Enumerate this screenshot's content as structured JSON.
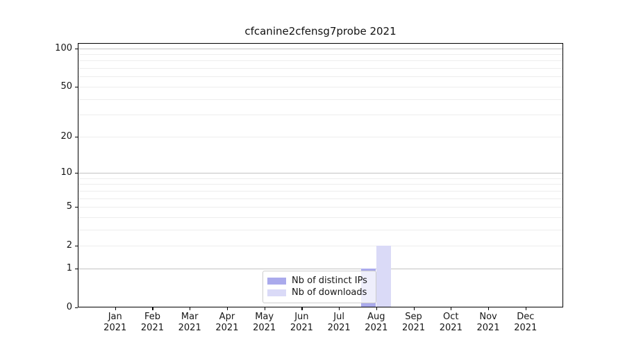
{
  "chart_data": {
    "type": "bar",
    "title": "cfcanine2cfensg7probe 2021",
    "categories": [
      {
        "month": "Jan",
        "year": "2021"
      },
      {
        "month": "Feb",
        "year": "2021"
      },
      {
        "month": "Mar",
        "year": "2021"
      },
      {
        "month": "Apr",
        "year": "2021"
      },
      {
        "month": "May",
        "year": "2021"
      },
      {
        "month": "Jun",
        "year": "2021"
      },
      {
        "month": "Jul",
        "year": "2021"
      },
      {
        "month": "Aug",
        "year": "2021"
      },
      {
        "month": "Sep",
        "year": "2021"
      },
      {
        "month": "Oct",
        "year": "2021"
      },
      {
        "month": "Nov",
        "year": "2021"
      },
      {
        "month": "Dec",
        "year": "2021"
      }
    ],
    "series": [
      {
        "name": "Nb of distinct IPs",
        "color": "#aaaaec",
        "values": [
          0,
          0,
          0,
          0,
          0,
          0,
          0,
          1,
          0,
          0,
          0,
          0
        ]
      },
      {
        "name": "Nb of downloads",
        "color": "#dadaf7",
        "values": [
          0,
          0,
          0,
          0,
          0,
          0,
          0,
          2,
          0,
          0,
          0,
          0
        ]
      }
    ],
    "y_ticks": [
      0,
      1,
      2,
      5,
      10,
      20,
      50,
      100
    ],
    "y_major_grid": [
      1,
      10,
      100
    ],
    "y_minor_grid": [
      2,
      3,
      4,
      5,
      6,
      7,
      8,
      9,
      20,
      30,
      40,
      50,
      60,
      70,
      80,
      90
    ],
    "scale": "log1p",
    "ylim": [
      0,
      110
    ],
    "grid": "horizontal",
    "legend_position": "inside-bottom-center"
  }
}
